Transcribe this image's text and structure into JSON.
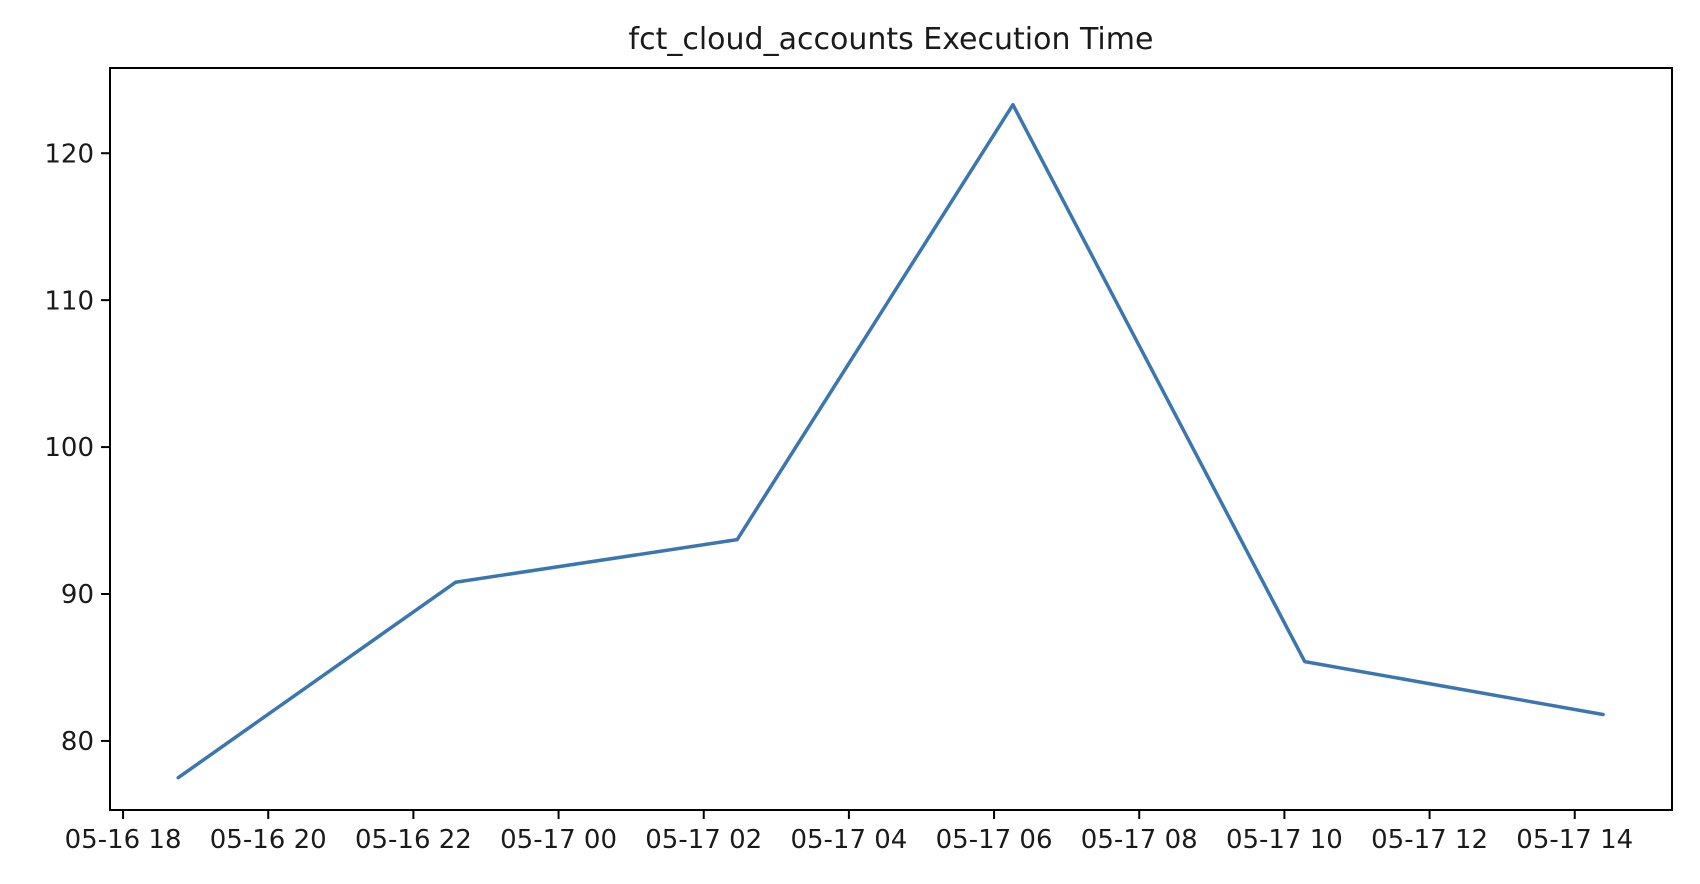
{
  "page": {
    "background": "#ffffff"
  },
  "chart_data": {
    "type": "line",
    "title": "fct_cloud_accounts Execution Time",
    "xlabel": "",
    "ylabel": "",
    "grid": false,
    "legend": "none",
    "line_color": "#3b76af",
    "axis_color": "#000000",
    "text_color": "#1a1a1a",
    "x_axis": {
      "unit": "time (MM-DD HH)",
      "range_hours": [
        -0.18,
        21.34
      ],
      "ticks": [
        {
          "label": "05-16 18",
          "hours": 0
        },
        {
          "label": "05-16 20",
          "hours": 2
        },
        {
          "label": "05-16 22",
          "hours": 4
        },
        {
          "label": "05-17 00",
          "hours": 6
        },
        {
          "label": "05-17 02",
          "hours": 8
        },
        {
          "label": "05-17 04",
          "hours": 10
        },
        {
          "label": "05-17 06",
          "hours": 12
        },
        {
          "label": "05-17 08",
          "hours": 14
        },
        {
          "label": "05-17 10",
          "hours": 16
        },
        {
          "label": "05-17 12",
          "hours": 18
        },
        {
          "label": "05-17 14",
          "hours": 20
        }
      ]
    },
    "y_axis": {
      "range": [
        75.3,
        125.8
      ],
      "ticks": [
        {
          "label": "80",
          "value": 80
        },
        {
          "label": "90",
          "value": 90
        },
        {
          "label": "100",
          "value": 100
        },
        {
          "label": "110",
          "value": 110
        },
        {
          "label": "120",
          "value": 120
        }
      ]
    },
    "series": [
      {
        "name": "fct_cloud_accounts execution time",
        "points": [
          {
            "time": "05-16 18:46",
            "hours": 0.76,
            "value": 77.5
          },
          {
            "time": "05-16 22:35",
            "hours": 4.58,
            "value": 90.8
          },
          {
            "time": "05-17 02:27",
            "hours": 8.46,
            "value": 93.7
          },
          {
            "time": "05-17 06:16",
            "hours": 12.26,
            "value": 123.3
          },
          {
            "time": "05-17 10:17",
            "hours": 16.28,
            "value": 85.4
          },
          {
            "time": "05-17 14:23",
            "hours": 20.39,
            "value": 81.8
          }
        ]
      }
    ]
  }
}
